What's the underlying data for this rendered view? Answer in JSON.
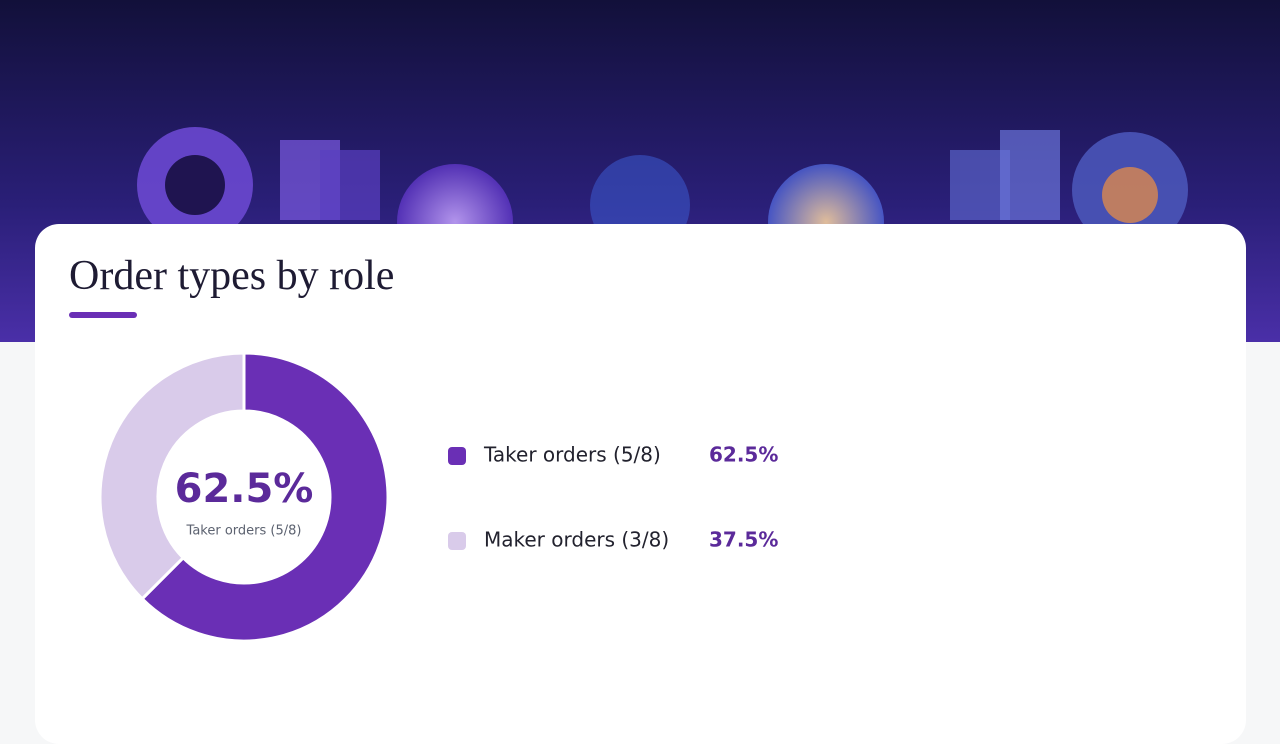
{
  "chart_data": {
    "type": "donut",
    "title": "Order types by role",
    "categories": [
      "Taker orders (5/8)",
      "Maker orders (3/8)"
    ],
    "values": [
      62.5,
      37.5
    ],
    "value_labels": [
      "62.5%",
      "37.5%"
    ],
    "colors": [
      "#6a2fb5",
      "#d9cbea"
    ]
  }
}
